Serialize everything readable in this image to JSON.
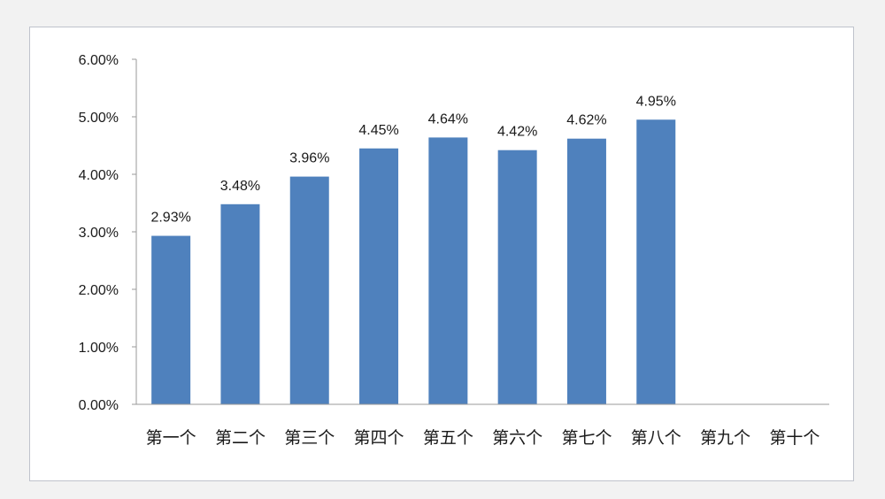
{
  "chart_data": {
    "type": "bar",
    "title": "",
    "xlabel": "",
    "ylabel": "",
    "categories": [
      "第一个",
      "第二个",
      "第三个",
      "第四个",
      "第五个",
      "第六个",
      "第七个",
      "第八个",
      "第九个",
      "第十个"
    ],
    "values": [
      2.93,
      3.48,
      3.96,
      4.45,
      4.64,
      4.42,
      4.62,
      4.95,
      null,
      null
    ],
    "data_labels": [
      "2.93%",
      "3.48%",
      "3.96%",
      "4.45%",
      "4.64%",
      "4.42%",
      "4.62%",
      "4.95%",
      "",
      ""
    ],
    "y_ticks": [
      "0.00%",
      "1.00%",
      "2.00%",
      "3.00%",
      "4.00%",
      "5.00%",
      "6.00%"
    ],
    "y_tick_values": [
      0,
      1,
      2,
      3,
      4,
      5,
      6
    ],
    "ylim": [
      0,
      6
    ],
    "grid": false,
    "legend": "none",
    "bar_color": "#4f81bd",
    "axis_color": "#9a9a9a"
  }
}
